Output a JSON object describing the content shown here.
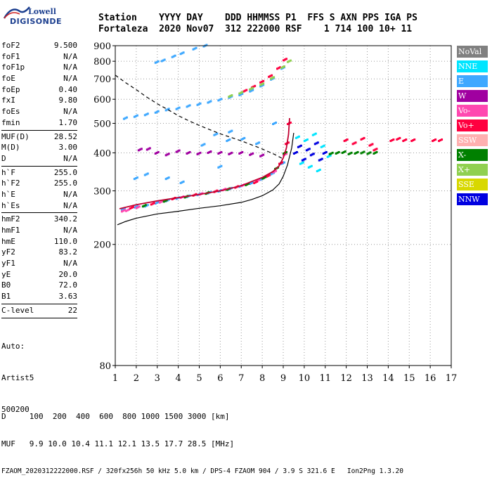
{
  "logo": {
    "line1": "Lowell",
    "line2": "DIGISONDE"
  },
  "header": {
    "line1": "Station    YYYY DAY    DDD HHMMSS P1  FFS S AXN PPS IGA PS",
    "line2": "Fortaleza  2020 Nov07  312 222000 RSF    1 714 100 10+ 11"
  },
  "params": {
    "group1": [
      {
        "label": "foF2",
        "value": "9.500"
      },
      {
        "label": "foF1",
        "value": "N/A"
      },
      {
        "label": "foF1p",
        "value": "N/A"
      },
      {
        "label": "foE",
        "value": "N/A"
      },
      {
        "label": "foEp",
        "value": "0.40"
      },
      {
        "label": "fxI",
        "value": "9.80"
      },
      {
        "label": "foEs",
        "value": "N/A"
      },
      {
        "label": "fmin",
        "value": "1.70"
      }
    ],
    "group2": [
      {
        "label": "MUF(D)",
        "value": "28.52"
      },
      {
        "label": "M(D)",
        "value": "3.00"
      },
      {
        "label": "D",
        "value": "N/A"
      }
    ],
    "group3": [
      {
        "label": "h`F",
        "value": "255.0"
      },
      {
        "label": "h`F2",
        "value": "255.0"
      },
      {
        "label": "h`E",
        "value": "N/A"
      },
      {
        "label": "h`Es",
        "value": "N/A"
      }
    ],
    "group4": [
      {
        "label": "hmF2",
        "value": "340.2"
      },
      {
        "label": "hmF1",
        "value": "N/A"
      },
      {
        "label": "hmE",
        "value": "110.0"
      },
      {
        "label": "yF2",
        "value": "83.2"
      },
      {
        "label": "yF1",
        "value": "N/A"
      },
      {
        "label": "yE",
        "value": "20.0"
      },
      {
        "label": "B0",
        "value": "72.0"
      },
      {
        "label": "B1",
        "value": "3.63"
      }
    ],
    "group5": [
      {
        "label": "C-level",
        "value": "22"
      }
    ],
    "auto": [
      "Auto:",
      "Artist5",
      "500200"
    ]
  },
  "legend": [
    {
      "label": "NoVal",
      "color": "#808080"
    },
    {
      "label": "NNE",
      "color": "#00e5ff"
    },
    {
      "label": "E",
      "color": "#3ea8ff"
    },
    {
      "label": "W",
      "color": "#a000a0"
    },
    {
      "label": "Vo-",
      "color": "#ff48b0"
    },
    {
      "label": "Vo+",
      "color": "#ff0040"
    },
    {
      "label": "SSW",
      "color": "#ffb0b0"
    },
    {
      "label": "X-",
      "color": "#008000"
    },
    {
      "label": "X+",
      "color": "#90d050"
    },
    {
      "label": "SSE",
      "color": "#d8d800"
    },
    {
      "label": "NNW",
      "color": "#0000e0"
    }
  ],
  "footer": {
    "line1": "D     100  200  400  600  800 1000 1500 3000 [km]",
    "line2": "MUF   9.9 10.0 10.4 11.1 12.1 13.5 17.7 28.5 [MHz]",
    "line3": "FZAOM_2020312222000.RSF / 320fx256h 50 kHz 5.0 km / DPS-4 FZAOM 904 / 3.9 S 321.6 E   Ion2Png 1.3.20"
  },
  "chart_data": {
    "type": "scatter",
    "title": "",
    "xlabel": "",
    "ylabel": "",
    "xlim": [
      1,
      17
    ],
    "ylim": [
      80,
      900
    ],
    "y_scale": "log",
    "x_ticks": [
      1,
      2,
      3,
      4,
      5,
      6,
      7,
      8,
      9,
      10,
      11,
      12,
      13,
      14,
      15,
      16,
      17
    ],
    "y_ticks": [
      80,
      200,
      300,
      400,
      500,
      600,
      700,
      800,
      900
    ],
    "grid": "dotted",
    "lines": [
      {
        "style": "solid-red",
        "color": "#c00030",
        "points": [
          [
            1.2,
            262
          ],
          [
            2,
            270
          ],
          [
            3,
            278
          ],
          [
            4,
            285
          ],
          [
            5,
            292
          ],
          [
            6,
            300
          ],
          [
            7,
            312
          ],
          [
            7.5,
            322
          ],
          [
            8,
            332
          ],
          [
            8.5,
            347
          ],
          [
            8.8,
            362
          ],
          [
            9.0,
            385
          ],
          [
            9.15,
            415
          ],
          [
            9.25,
            460
          ],
          [
            9.3,
            520
          ]
        ]
      },
      {
        "style": "solid-black",
        "color": "#000000",
        "points": [
          [
            1.1,
            232
          ],
          [
            1.5,
            238
          ],
          [
            2,
            244
          ],
          [
            3,
            252
          ],
          [
            4,
            257
          ],
          [
            5,
            263
          ],
          [
            6,
            268
          ],
          [
            7,
            275
          ],
          [
            7.5,
            281
          ],
          [
            8,
            289
          ],
          [
            8.5,
            302
          ],
          [
            8.8,
            316
          ],
          [
            9.0,
            335
          ],
          [
            9.2,
            365
          ],
          [
            9.4,
            415
          ],
          [
            9.5,
            465
          ]
        ]
      },
      {
        "style": "dashed-black",
        "color": "#000000",
        "points": [
          [
            1,
            720
          ],
          [
            1.5,
            680
          ],
          [
            2,
            645
          ],
          [
            2.5,
            610
          ],
          [
            3,
            580
          ],
          [
            3.5,
            555
          ],
          [
            4,
            530
          ],
          [
            4.5,
            510
          ],
          [
            5,
            492
          ],
          [
            6,
            462
          ],
          [
            7,
            438
          ],
          [
            8,
            412
          ],
          [
            8.6,
            395
          ],
          [
            9,
            382
          ]
        ]
      }
    ],
    "traces": [
      {
        "name": "",
        "color": "#3ea8ff",
        "points": [
          [
            1.4,
            262
          ],
          [
            2,
            266
          ],
          [
            2.5,
            268
          ],
          [
            3,
            274
          ],
          [
            3.5,
            279
          ],
          [
            4,
            284
          ],
          [
            4.5,
            288
          ],
          [
            5,
            292
          ],
          [
            5.5,
            296
          ],
          [
            6,
            300
          ],
          [
            6.5,
            305
          ],
          [
            7,
            311
          ],
          [
            7.5,
            318
          ],
          [
            8,
            328
          ],
          [
            8.5,
            342
          ],
          [
            9,
            370
          ]
        ]
      },
      {
        "name": "",
        "color": "#ff48b0",
        "points": [
          [
            1.4,
            258
          ],
          [
            1.6,
            259
          ],
          [
            2.1,
            265
          ],
          [
            3.2,
            276
          ],
          [
            4.2,
            286
          ],
          [
            5.1,
            293
          ],
          [
            6.2,
            303
          ],
          [
            7.1,
            313
          ],
          [
            7.8,
            324
          ],
          [
            8.6,
            347
          ],
          [
            9.1,
            395
          ]
        ]
      },
      {
        "name": "",
        "color": "#ff0040",
        "points": [
          [
            1.8,
            264
          ],
          [
            2.8,
            272
          ],
          [
            3.8,
            283
          ],
          [
            4.8,
            291
          ],
          [
            5.8,
            299
          ],
          [
            6.8,
            309
          ],
          [
            7.7,
            320
          ],
          [
            8.3,
            336
          ],
          [
            8.9,
            370
          ],
          [
            9.2,
            430
          ],
          [
            9.3,
            500
          ]
        ]
      },
      {
        "name": "",
        "color": "#008000",
        "points": [
          [
            2.4,
            268
          ],
          [
            3.4,
            278
          ],
          [
            4.4,
            287
          ],
          [
            5.4,
            295
          ],
          [
            6.4,
            304
          ],
          [
            7.3,
            315
          ],
          [
            8.1,
            331
          ],
          [
            8.7,
            356
          ],
          [
            9.1,
            400
          ]
        ]
      },
      {
        "name": "",
        "color": "#a000a0",
        "points": [
          [
            2.2,
            410
          ],
          [
            2.6,
            412
          ],
          [
            3,
            400
          ],
          [
            3.5,
            395
          ],
          [
            4,
            405
          ],
          [
            4.5,
            400
          ],
          [
            5,
            398
          ],
          [
            5.5,
            402
          ],
          [
            6,
            400
          ],
          [
            6.5,
            398
          ],
          [
            7,
            400
          ],
          [
            7.5,
            396
          ],
          [
            8,
            392
          ]
        ]
      },
      {
        "name": "",
        "color": "#3ea8ff",
        "points": [
          [
            1.5,
            520
          ],
          [
            2,
            528
          ],
          [
            2.5,
            535
          ],
          [
            3,
            545
          ],
          [
            3.5,
            555
          ],
          [
            4,
            560
          ],
          [
            4.5,
            570
          ],
          [
            5,
            578
          ],
          [
            5.5,
            588
          ],
          [
            6,
            598
          ],
          [
            6.5,
            610
          ],
          [
            7,
            622
          ],
          [
            7.5,
            640
          ],
          [
            8,
            665
          ],
          [
            8.5,
            700
          ],
          [
            9,
            760
          ]
        ]
      },
      {
        "name": "",
        "color": "#ff0040",
        "points": [
          [
            7.2,
            640
          ],
          [
            7.6,
            660
          ],
          [
            8,
            685
          ],
          [
            8.4,
            715
          ],
          [
            8.8,
            760
          ],
          [
            9.1,
            810
          ]
        ]
      },
      {
        "name": "",
        "color": "#90d050",
        "points": [
          [
            6.5,
            615
          ],
          [
            7,
            630
          ],
          [
            7.5,
            650
          ],
          [
            8,
            672
          ],
          [
            8.5,
            705
          ],
          [
            9,
            765
          ],
          [
            9.3,
            800
          ]
        ]
      },
      {
        "name": "",
        "color": "#3ea8ff",
        "points": [
          [
            3,
            795
          ],
          [
            3.3,
            805
          ],
          [
            3.8,
            830
          ],
          [
            4.2,
            850
          ],
          [
            4.8,
            880
          ],
          [
            5.3,
            900
          ]
        ]
      },
      {
        "name": "",
        "color": "#0000e0",
        "points": [
          [
            9.6,
            400
          ],
          [
            9.8,
            420
          ],
          [
            10,
            380
          ],
          [
            10.2,
            410
          ],
          [
            10.4,
            395
          ],
          [
            10.6,
            430
          ],
          [
            10.8,
            380
          ],
          [
            11,
            400
          ]
        ]
      },
      {
        "name": "",
        "color": "#00e5ff",
        "points": [
          [
            9.7,
            450
          ],
          [
            9.9,
            370
          ],
          [
            10.1,
            440
          ],
          [
            10.3,
            360
          ],
          [
            10.5,
            460
          ],
          [
            10.7,
            350
          ],
          [
            10.9,
            420
          ],
          [
            11.2,
            390
          ]
        ]
      },
      {
        "name": "",
        "color": "#008000",
        "points": [
          [
            11.3,
            398
          ],
          [
            11.6,
            400
          ],
          [
            11.9,
            402
          ],
          [
            12.2,
            398
          ],
          [
            12.5,
            400
          ],
          [
            12.8,
            401
          ],
          [
            13.1,
            399
          ],
          [
            13.4,
            400
          ]
        ]
      },
      {
        "name": "",
        "color": "#ff0040",
        "points": [
          [
            12,
            440
          ],
          [
            12.4,
            430
          ],
          [
            12.8,
            445
          ],
          [
            13.2,
            425
          ],
          [
            13.4,
            410
          ],
          [
            14.2,
            440
          ],
          [
            14.5,
            445
          ],
          [
            14.8,
            440
          ],
          [
            15.2,
            440
          ],
          [
            16.2,
            440
          ],
          [
            16.5,
            440
          ]
        ]
      },
      {
        "name": "",
        "color": "#3ea8ff",
        "points": [
          [
            5.2,
            425
          ],
          [
            5.8,
            460
          ],
          [
            6.4,
            440
          ],
          [
            7.1,
            445
          ],
          [
            7.8,
            430
          ],
          [
            8.6,
            500
          ],
          [
            3.5,
            330
          ],
          [
            4.2,
            320
          ],
          [
            2,
            330
          ],
          [
            2.5,
            340
          ],
          [
            6,
            360
          ],
          [
            6.5,
            470
          ]
        ]
      }
    ]
  }
}
